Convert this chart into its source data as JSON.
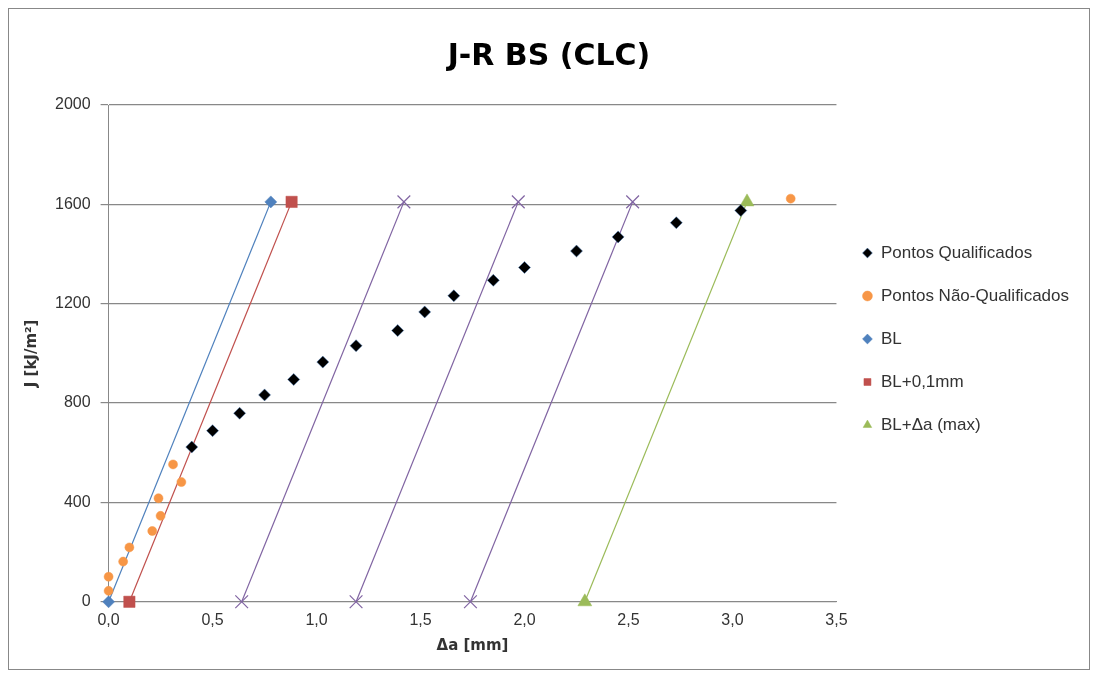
{
  "chart_data": {
    "type": "scatter",
    "title": "J-R BS (CLC)",
    "xlabel": "Δa [mm]",
    "ylabel": "J [kJ/m²]",
    "xlim": [
      0,
      3.5
    ],
    "xticks": [
      {
        "value": 0,
        "label": "0,0"
      },
      {
        "value": 0.5,
        "label": "0,5"
      },
      {
        "value": 1,
        "label": "1,0"
      },
      {
        "value": 1.5,
        "label": "1,5"
      },
      {
        "value": 2,
        "label": "2,0"
      },
      {
        "value": 2.5,
        "label": "2,5"
      },
      {
        "value": 3,
        "label": "3,0"
      },
      {
        "value": 3.5,
        "label": "3,5"
      }
    ],
    "ylim": [
      0,
      2000
    ],
    "yticks": [
      0,
      400,
      800,
      1200,
      1600,
      2000
    ],
    "grid": "y",
    "legend": "right",
    "series": [
      {
        "name": "Pontos Qualificados",
        "type": "scatter",
        "marker": "diamond",
        "color": "#000000",
        "x": [
          0.4,
          0.5,
          0.63,
          0.75,
          0.89,
          1.03,
          1.19,
          1.39,
          1.52,
          1.66,
          1.85,
          2.0,
          2.25,
          2.45,
          2.73,
          3.04
        ],
        "values": [
          623,
          689,
          759,
          833,
          895,
          965,
          1031,
          1092,
          1167,
          1232,
          1294,
          1346,
          1412,
          1469,
          1526,
          1575
        ]
      },
      {
        "name": "Pontos Não-Qualificados",
        "type": "scatter",
        "marker": "circle",
        "color": "#f79646",
        "x": [
          0.0,
          0.0,
          0.07,
          0.1,
          0.21,
          0.25,
          0.24,
          0.35,
          0.31,
          3.28
        ],
        "values": [
          44,
          101,
          162,
          219,
          285,
          346,
          417,
          482,
          553,
          1623
        ]
      },
      {
        "name": "BL",
        "type": "line",
        "marker": "diamond",
        "color": "#4f81bd",
        "x": [
          0,
          0.78
        ],
        "values": [
          0,
          1610
        ]
      },
      {
        "name": "BL+0,1mm",
        "type": "line",
        "marker": "square",
        "color": "#c0504d",
        "x": [
          0.1,
          0.88
        ],
        "values": [
          0,
          1610
        ]
      },
      {
        "type": "line",
        "marker": "cross",
        "color": "#8064a2",
        "x": [
          0.64,
          1.42
        ],
        "values": [
          0,
          1610
        ]
      },
      {
        "type": "line",
        "marker": "cross",
        "color": "#8064a2",
        "x": [
          1.19,
          1.97
        ],
        "values": [
          0,
          1610
        ]
      },
      {
        "type": "line",
        "marker": "cross",
        "color": "#8064a2",
        "x": [
          1.74,
          2.52
        ],
        "values": [
          0,
          1610
        ]
      },
      {
        "name": "BL+Δa (max)",
        "type": "line",
        "marker": "triangle",
        "color": "#9bbb59",
        "x": [
          2.29,
          3.07
        ],
        "values": [
          0,
          1610
        ]
      }
    ]
  }
}
